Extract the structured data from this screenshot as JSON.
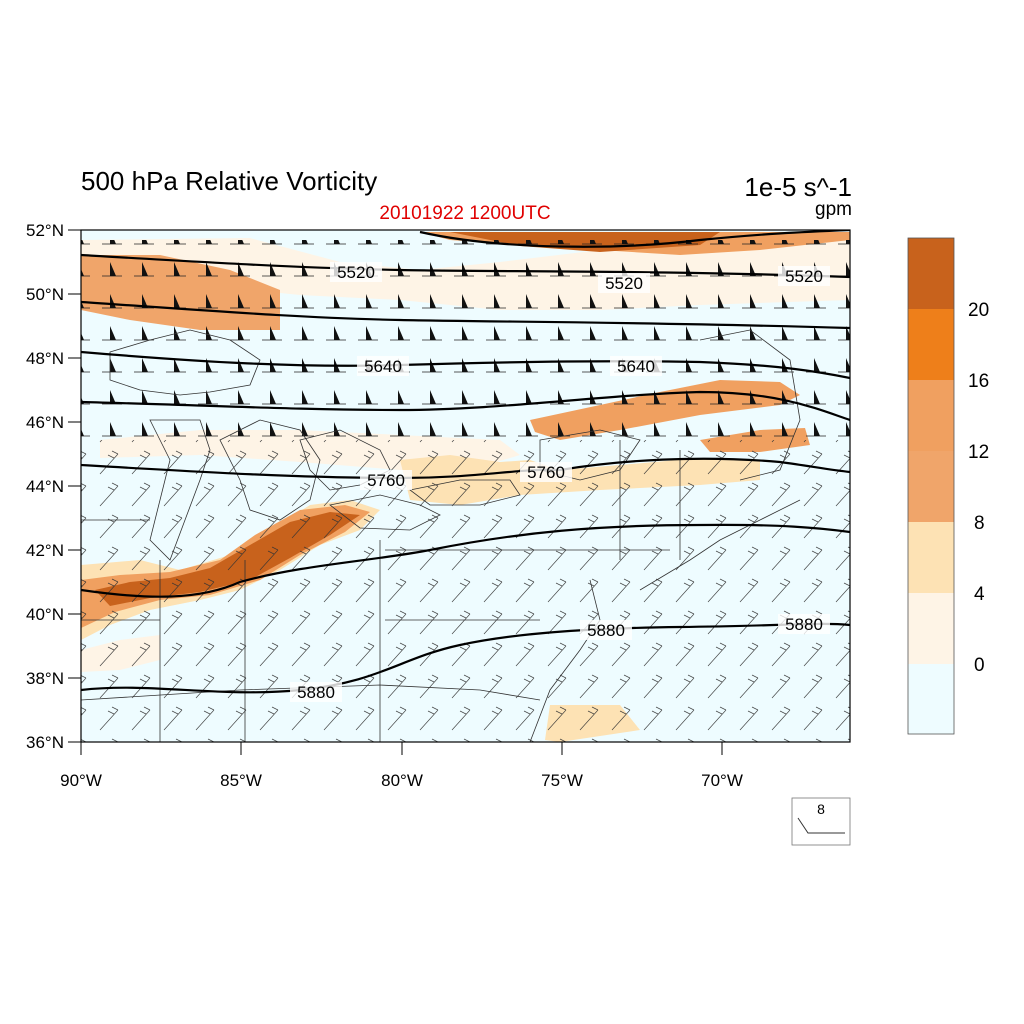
{
  "title": "500 hPa Relative Vorticity",
  "subtitle": "20101922 1200UTC",
  "units_main": "1e-5 s^-1",
  "units_contour": "gpm",
  "map": {
    "lon_range": [
      -90,
      -66
    ],
    "lat_range": [
      36,
      52
    ],
    "lat_ticks": [
      "52°N",
      "50°N",
      "48°N",
      "46°N",
      "44°N",
      "42°N",
      "40°N",
      "38°N",
      "36°N"
    ],
    "lon_ticks": [
      "90°W",
      "85°W",
      "80°W",
      "75°W",
      "70°W"
    ]
  },
  "colorbar": {
    "labels": [
      "20",
      "16",
      "12",
      "8",
      "4",
      "0"
    ],
    "colors": [
      "#c8621c",
      "#ee7f1a",
      "#f0a060",
      "#f0a56a",
      "#fde2b4",
      "#fef4e6",
      "#eefcff"
    ]
  },
  "contours": [
    {
      "value": "5520",
      "labels": [
        "5520",
        "5520",
        "5520"
      ]
    },
    {
      "value": "5640",
      "labels": [
        "5640",
        "5640"
      ]
    },
    {
      "value": "5760",
      "labels": [
        "5760",
        "5760"
      ]
    },
    {
      "value": "5880",
      "labels": [
        "5880",
        "5880",
        "5880"
      ]
    }
  ],
  "reference_vector": "8"
}
